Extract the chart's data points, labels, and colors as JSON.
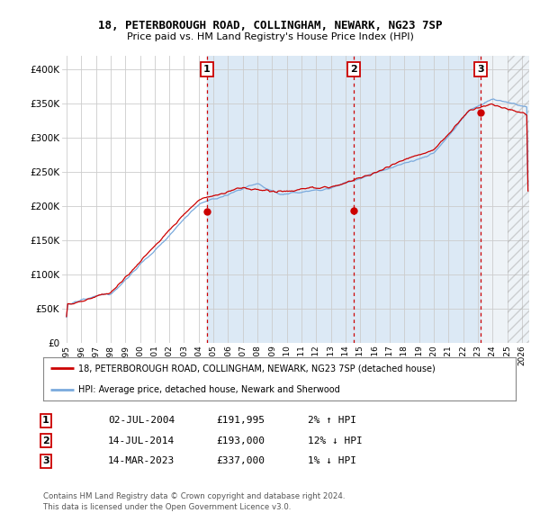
{
  "title1": "18, PETERBOROUGH ROAD, COLLINGHAM, NEWARK, NG23 7SP",
  "title2": "Price paid vs. HM Land Registry's House Price Index (HPI)",
  "yticks": [
    0,
    50000,
    100000,
    150000,
    200000,
    250000,
    300000,
    350000,
    400000
  ],
  "ytick_labels": [
    "£0",
    "£50K",
    "£100K",
    "£150K",
    "£200K",
    "£250K",
    "£300K",
    "£350K",
    "£400K"
  ],
  "sale_color": "#cc0000",
  "hpi_color": "#7aaadd",
  "grid_color": "#cccccc",
  "background_color": "#dce9f5",
  "annotation_box_color": "#cc0000",
  "dashed_line_color": "#cc0000",
  "sale_dates": [
    2004.54,
    2014.54,
    2023.21
  ],
  "sale_prices": [
    191995,
    193000,
    337000
  ],
  "sale_labels": [
    "1",
    "2",
    "3"
  ],
  "legend_line1": "18, PETERBOROUGH ROAD, COLLINGHAM, NEWARK, NG23 7SP (detached house)",
  "legend_line2": "HPI: Average price, detached house, Newark and Sherwood",
  "table_rows": [
    {
      "num": "1",
      "date": "02-JUL-2004",
      "price": "£191,995",
      "hpi": "2% ↑ HPI"
    },
    {
      "num": "2",
      "date": "14-JUL-2014",
      "price": "£193,000",
      "hpi": "12% ↓ HPI"
    },
    {
      "num": "3",
      "date": "14-MAR-2023",
      "price": "£337,000",
      "hpi": "1% ↓ HPI"
    }
  ],
  "footer1": "Contains HM Land Registry data © Crown copyright and database right 2024.",
  "footer2": "This data is licensed under the Open Government Licence v3.0."
}
